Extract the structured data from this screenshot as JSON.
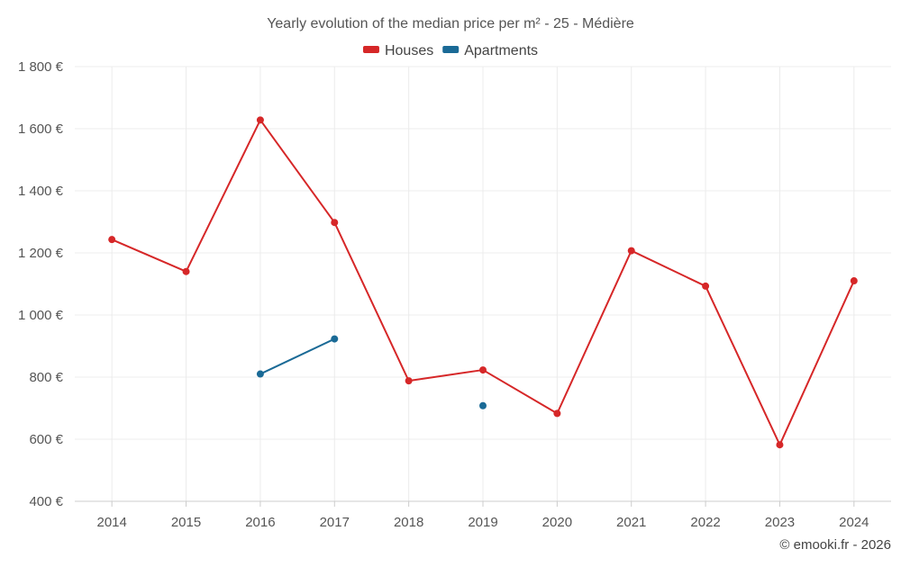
{
  "chart_data": {
    "type": "line",
    "title": "Yearly evolution of the median price per m² - 25 - Médière",
    "x": [
      "2014",
      "2015",
      "2016",
      "2017",
      "2018",
      "2019",
      "2020",
      "2021",
      "2022",
      "2023",
      "2024"
    ],
    "ylim": [
      400,
      1800
    ],
    "yticks": [
      400,
      600,
      800,
      1000,
      1200,
      1400,
      1600,
      1800
    ],
    "ytick_labels": [
      "400 €",
      "600 €",
      "800 €",
      "1 000 €",
      "1 200 €",
      "1 400 €",
      "1 600 €",
      "1 800 €"
    ],
    "grid": true,
    "legend_position": "top-center",
    "series": [
      {
        "name": "Houses",
        "color": "#d62728",
        "values": [
          1243,
          1140,
          1628,
          1298,
          788,
          823,
          683,
          1207,
          1093,
          582,
          1110
        ]
      },
      {
        "name": "Apartments",
        "color": "#1a6a96",
        "values": [
          null,
          null,
          810,
          923,
          null,
          708,
          null,
          null,
          null,
          null,
          null
        ]
      }
    ]
  },
  "credit": "© emooki.fr - 2026"
}
